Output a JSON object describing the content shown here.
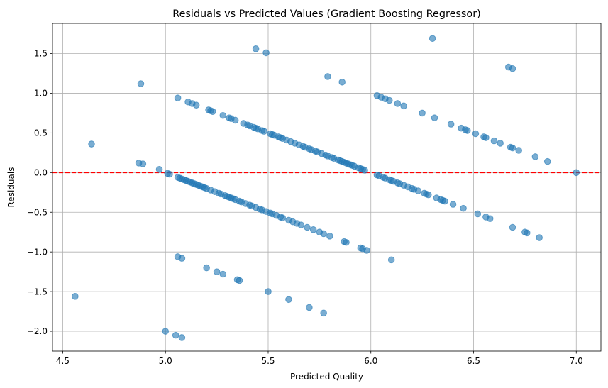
{
  "chart_data": {
    "type": "scatter",
    "title": "Residuals vs Predicted Values (Gradient Boosting Regressor)",
    "xlabel": "Predicted Quality",
    "ylabel": "Residuals",
    "xlim": [
      4.45,
      7.12
    ],
    "ylim": [
      -2.25,
      1.88
    ],
    "xticks": [
      4.5,
      5.0,
      5.5,
      6.0,
      6.5,
      7.0
    ],
    "xtick_labels": [
      "4.5",
      "5.0",
      "5.5",
      "6.0",
      "6.5",
      "7.0"
    ],
    "yticks": [
      -2.0,
      -1.5,
      -1.0,
      -0.5,
      0.0,
      0.5,
      1.0,
      1.5
    ],
    "ytick_labels": [
      "−2.0",
      "−1.5",
      "−1.0",
      "−0.5",
      "0.0",
      "0.5",
      "1.0",
      "1.5"
    ],
    "grid": true,
    "reference_line": {
      "y": 0,
      "color": "#ff0000",
      "style": "dashed"
    },
    "point_color": "#1f77b4",
    "points": [
      [
        4.56,
        -1.56
      ],
      [
        4.64,
        0.36
      ],
      [
        4.87,
        0.12
      ],
      [
        4.88,
        1.12
      ],
      [
        4.89,
        0.11
      ],
      [
        4.97,
        0.04
      ],
      [
        5.0,
        -2.0
      ],
      [
        5.01,
        -0.01
      ],
      [
        5.02,
        -0.02
      ],
      [
        5.05,
        -2.05
      ],
      [
        5.06,
        0.94
      ],
      [
        5.06,
        -1.06
      ],
      [
        5.06,
        -0.06
      ],
      [
        5.07,
        -0.07
      ],
      [
        5.08,
        -2.08
      ],
      [
        5.08,
        -1.08
      ],
      [
        5.08,
        -0.08
      ],
      [
        5.09,
        -0.09
      ],
      [
        5.1,
        -0.1
      ],
      [
        5.11,
        0.89
      ],
      [
        5.11,
        -0.11
      ],
      [
        5.12,
        -0.12
      ],
      [
        5.13,
        0.87
      ],
      [
        5.13,
        -0.13
      ],
      [
        5.14,
        -0.14
      ],
      [
        5.15,
        0.85
      ],
      [
        5.15,
        -0.15
      ],
      [
        5.16,
        -0.16
      ],
      [
        5.17,
        -0.17
      ],
      [
        5.18,
        -0.18
      ],
      [
        5.19,
        -0.19
      ],
      [
        5.2,
        -1.2
      ],
      [
        5.2,
        -0.2
      ],
      [
        5.21,
        0.79
      ],
      [
        5.22,
        0.78
      ],
      [
        5.22,
        -0.22
      ],
      [
        5.23,
        0.77
      ],
      [
        5.24,
        -0.24
      ],
      [
        5.25,
        -1.25
      ],
      [
        5.26,
        -0.26
      ],
      [
        5.27,
        -0.27
      ],
      [
        5.28,
        0.72
      ],
      [
        5.28,
        -1.28
      ],
      [
        5.29,
        -0.29
      ],
      [
        5.3,
        -0.3
      ],
      [
        5.31,
        0.69
      ],
      [
        5.31,
        -0.31
      ],
      [
        5.32,
        0.68
      ],
      [
        5.32,
        -0.32
      ],
      [
        5.33,
        -0.33
      ],
      [
        5.34,
        0.66
      ],
      [
        5.34,
        -0.34
      ],
      [
        5.35,
        -1.35
      ],
      [
        5.36,
        -1.36
      ],
      [
        5.36,
        -0.36
      ],
      [
        5.37,
        -0.37
      ],
      [
        5.38,
        0.62
      ],
      [
        5.39,
        -0.39
      ],
      [
        5.4,
        0.6
      ],
      [
        5.41,
        0.59
      ],
      [
        5.41,
        -0.41
      ],
      [
        5.42,
        -0.42
      ],
      [
        5.43,
        0.57
      ],
      [
        5.44,
        1.56
      ],
      [
        5.44,
        0.56
      ],
      [
        5.44,
        -0.44
      ],
      [
        5.45,
        0.55
      ],
      [
        5.46,
        -0.46
      ],
      [
        5.47,
        0.53
      ],
      [
        5.47,
        -0.47
      ],
      [
        5.48,
        0.52
      ],
      [
        5.49,
        1.51
      ],
      [
        5.49,
        -0.49
      ],
      [
        5.5,
        -1.5
      ],
      [
        5.51,
        0.49
      ],
      [
        5.51,
        -0.51
      ],
      [
        5.52,
        0.48
      ],
      [
        5.52,
        -0.52
      ],
      [
        5.53,
        0.47
      ],
      [
        5.54,
        -0.54
      ],
      [
        5.55,
        0.45
      ],
      [
        5.56,
        0.44
      ],
      [
        5.56,
        -0.56
      ],
      [
        5.57,
        0.43
      ],
      [
        5.57,
        -0.57
      ],
      [
        5.59,
        0.41
      ],
      [
        5.6,
        -1.6
      ],
      [
        5.6,
        -0.6
      ],
      [
        5.61,
        0.39
      ],
      [
        5.62,
        -0.62
      ],
      [
        5.63,
        0.37
      ],
      [
        5.64,
        -0.64
      ],
      [
        5.65,
        0.35
      ],
      [
        5.66,
        -0.66
      ],
      [
        5.67,
        0.33
      ],
      [
        5.68,
        0.32
      ],
      [
        5.69,
        -0.69
      ],
      [
        5.7,
        -1.7
      ],
      [
        5.7,
        0.3
      ],
      [
        5.71,
        0.29
      ],
      [
        5.72,
        -0.72
      ],
      [
        5.73,
        0.27
      ],
      [
        5.74,
        0.26
      ],
      [
        5.75,
        -0.75
      ],
      [
        5.76,
        0.24
      ],
      [
        5.77,
        -1.77
      ],
      [
        5.77,
        -0.77
      ],
      [
        5.78,
        0.22
      ],
      [
        5.79,
        1.21
      ],
      [
        5.79,
        0.21
      ],
      [
        5.8,
        -0.8
      ],
      [
        5.81,
        0.19
      ],
      [
        5.82,
        0.18
      ],
      [
        5.84,
        0.16
      ],
      [
        5.85,
        0.15
      ],
      [
        5.86,
        1.14
      ],
      [
        5.86,
        0.14
      ],
      [
        5.87,
        -0.87
      ],
      [
        5.87,
        0.13
      ],
      [
        5.88,
        -0.88
      ],
      [
        5.88,
        0.12
      ],
      [
        5.89,
        0.11
      ],
      [
        5.9,
        0.1
      ],
      [
        5.91,
        0.09
      ],
      [
        5.92,
        0.08
      ],
      [
        5.94,
        0.06
      ],
      [
        5.95,
        -0.95
      ],
      [
        5.95,
        0.05
      ],
      [
        5.96,
        -0.96
      ],
      [
        5.96,
        0.04
      ],
      [
        5.97,
        0.03
      ],
      [
        5.98,
        -0.98
      ],
      [
        6.03,
        0.97
      ],
      [
        6.03,
        -0.03
      ],
      [
        6.04,
        -0.04
      ],
      [
        6.05,
        0.95
      ],
      [
        6.06,
        -0.06
      ],
      [
        6.07,
        0.93
      ],
      [
        6.07,
        -0.07
      ],
      [
        6.09,
        0.91
      ],
      [
        6.09,
        -0.09
      ],
      [
        6.1,
        -1.1
      ],
      [
        6.1,
        -0.1
      ],
      [
        6.11,
        -0.11
      ],
      [
        6.13,
        0.87
      ],
      [
        6.13,
        -0.13
      ],
      [
        6.14,
        -0.14
      ],
      [
        6.16,
        0.84
      ],
      [
        6.16,
        -0.16
      ],
      [
        6.18,
        -0.18
      ],
      [
        6.2,
        -0.2
      ],
      [
        6.21,
        -0.21
      ],
      [
        6.23,
        -0.23
      ],
      [
        6.25,
        0.75
      ],
      [
        6.26,
        -0.26
      ],
      [
        6.27,
        -0.27
      ],
      [
        6.28,
        -0.28
      ],
      [
        6.3,
        1.69
      ],
      [
        6.31,
        0.69
      ],
      [
        6.32,
        -0.32
      ],
      [
        6.34,
        -0.34
      ],
      [
        6.35,
        -0.35
      ],
      [
        6.36,
        -0.36
      ],
      [
        6.39,
        0.61
      ],
      [
        6.4,
        -0.4
      ],
      [
        6.44,
        0.56
      ],
      [
        6.45,
        -0.45
      ],
      [
        6.46,
        0.54
      ],
      [
        6.47,
        0.53
      ],
      [
        6.51,
        0.49
      ],
      [
        6.52,
        -0.52
      ],
      [
        6.55,
        0.45
      ],
      [
        6.56,
        0.44
      ],
      [
        6.56,
        -0.56
      ],
      [
        6.58,
        -0.58
      ],
      [
        6.6,
        0.4
      ],
      [
        6.63,
        0.37
      ],
      [
        6.67,
        1.33
      ],
      [
        6.68,
        0.32
      ],
      [
        6.69,
        1.31
      ],
      [
        6.69,
        0.31
      ],
      [
        6.69,
        -0.69
      ],
      [
        6.72,
        0.28
      ],
      [
        6.75,
        -0.75
      ],
      [
        6.76,
        -0.76
      ],
      [
        6.8,
        0.2
      ],
      [
        6.82,
        -0.82
      ],
      [
        6.86,
        0.14
      ],
      [
        7.0,
        0.0
      ]
    ]
  }
}
